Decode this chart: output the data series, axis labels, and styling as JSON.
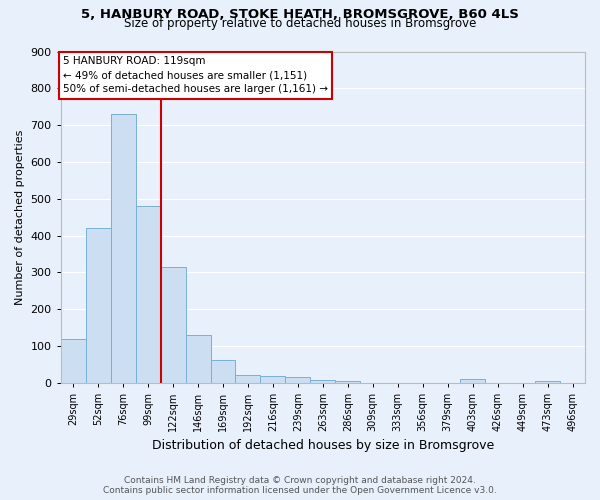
{
  "title_line1": "5, HANBURY ROAD, STOKE HEATH, BROMSGROVE, B60 4LS",
  "title_line2": "Size of property relative to detached houses in Bromsgrove",
  "xlabel": "Distribution of detached houses by size in Bromsgrove",
  "ylabel": "Number of detached properties",
  "categories": [
    "29sqm",
    "52sqm",
    "76sqm",
    "99sqm",
    "122sqm",
    "146sqm",
    "169sqm",
    "192sqm",
    "216sqm",
    "239sqm",
    "263sqm",
    "286sqm",
    "309sqm",
    "333sqm",
    "356sqm",
    "379sqm",
    "403sqm",
    "426sqm",
    "449sqm",
    "473sqm",
    "496sqm"
  ],
  "values": [
    120,
    420,
    730,
    480,
    315,
    130,
    62,
    20,
    18,
    15,
    8,
    5,
    0,
    0,
    0,
    0,
    10,
    0,
    0,
    5,
    0
  ],
  "bar_color": "#ccdff2",
  "bar_edge_color": "#7bafd4",
  "vline_color": "#cc0000",
  "vline_index": 4,
  "annotation_text": "5 HANBURY ROAD: 119sqm\n← 49% of detached houses are smaller (1,151)\n50% of semi-detached houses are larger (1,161) →",
  "annotation_box_facecolor": "#ffffff",
  "annotation_box_edgecolor": "#cc0000",
  "background_color": "#e8f0fb",
  "grid_color": "#ffffff",
  "footer_line1": "Contains HM Land Registry data © Crown copyright and database right 2024.",
  "footer_line2": "Contains public sector information licensed under the Open Government Licence v3.0.",
  "ylim": [
    0,
    900
  ],
  "yticks": [
    0,
    100,
    200,
    300,
    400,
    500,
    600,
    700,
    800,
    900
  ],
  "title1_fontsize": 9.5,
  "title2_fontsize": 8.5,
  "ylabel_fontsize": 8,
  "xlabel_fontsize": 9,
  "tick_fontsize": 7,
  "footer_fontsize": 6.5
}
